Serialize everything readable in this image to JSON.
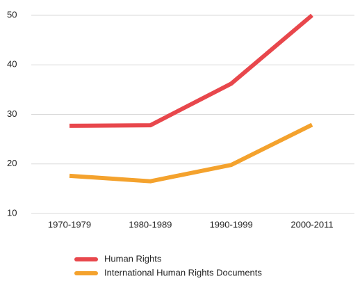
{
  "chart_data": {
    "type": "line",
    "categories": [
      "1970-1979",
      "1980-1989",
      "1990-1999",
      "2000-2011"
    ],
    "series": [
      {
        "name": "Human Rights",
        "color": "#e8474c",
        "values": [
          27.7,
          27.8,
          36.2,
          50
        ]
      },
      {
        "name": "International Human Rights Documents",
        "color": "#f4a22d",
        "values": [
          17.6,
          16.5,
          19.8,
          27.9
        ]
      }
    ],
    "ylim": [
      10,
      50
    ],
    "yticks": [
      10,
      20,
      30,
      40,
      50
    ],
    "grid": true,
    "legend": "bottom"
  }
}
